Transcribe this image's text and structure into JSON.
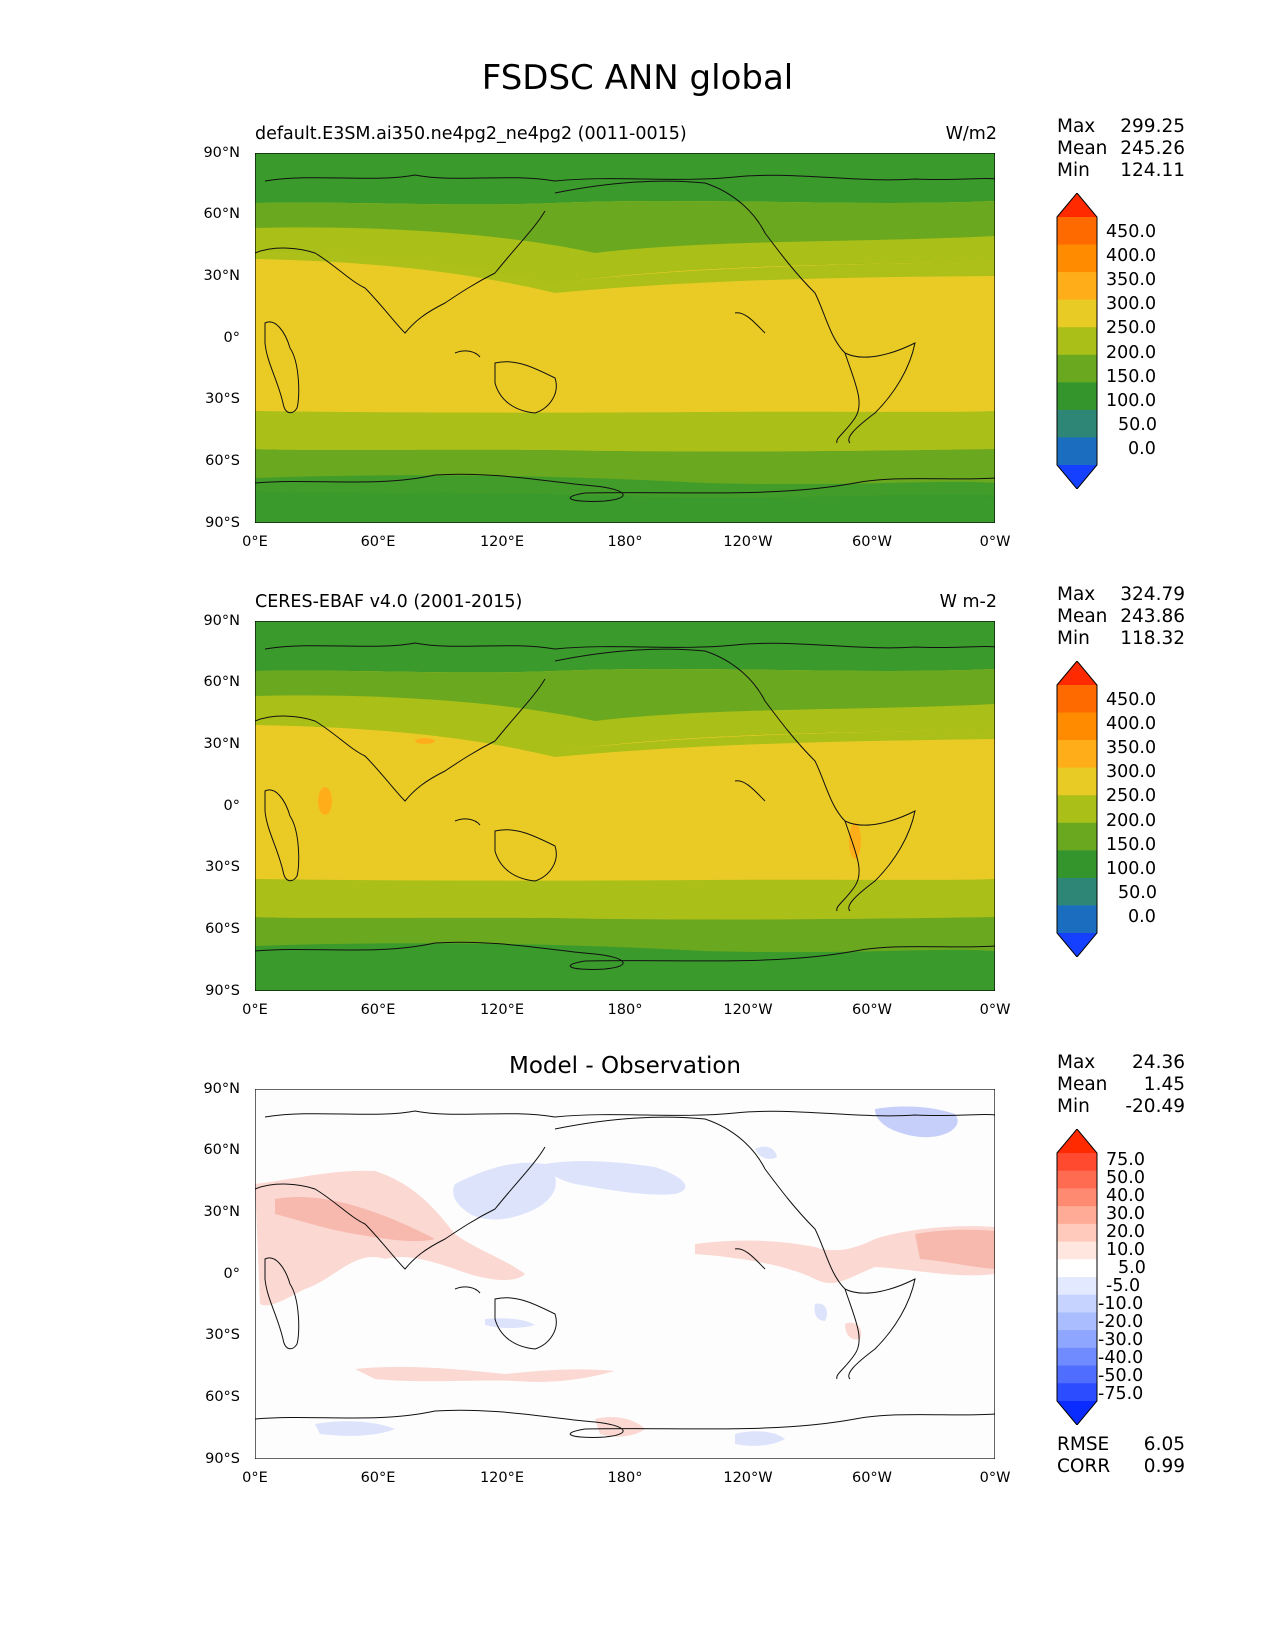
{
  "title": "FSDSC ANN global",
  "axes": {
    "y_ticks": [
      "90°N",
      "60°N",
      "30°N",
      "0°",
      "30°S",
      "60°S",
      "90°S"
    ],
    "x_ticks": [
      "0°E",
      "60°E",
      "120°E",
      "180°",
      "120°W",
      "60°W",
      "0°W"
    ]
  },
  "panels": [
    {
      "title": "default.E3SM.ai350.ne4pg2_ne4pg2 (0011-0015)",
      "units": "W/m2",
      "stats": [
        {
          "label": "Max",
          "value": "299.25"
        },
        {
          "label": "Mean",
          "value": "245.26"
        },
        {
          "label": "Min",
          "value": "124.11"
        }
      ],
      "colorbar": {
        "labels": [
          "450.0",
          "400.0",
          "350.0",
          "300.0",
          "250.0",
          "200.0",
          "150.0",
          "100.0",
          "50.0",
          "0.0"
        ],
        "colors": [
          "#ff2a00",
          "#ff6a00",
          "#ff8c00",
          "#ffae1a",
          "#e8cb25",
          "#aabf18",
          "#6aa81f",
          "#34952d",
          "#2e8676",
          "#1a6dbf",
          "#1640ff"
        ]
      }
    },
    {
      "title": "CERES-EBAF v4.0 (2001-2015)",
      "units": "W m-2",
      "stats": [
        {
          "label": "Max",
          "value": "324.79"
        },
        {
          "label": "Mean",
          "value": "243.86"
        },
        {
          "label": "Min",
          "value": "118.32"
        }
      ],
      "colorbar": {
        "labels": [
          "450.0",
          "400.0",
          "350.0",
          "300.0",
          "250.0",
          "200.0",
          "150.0",
          "100.0",
          "50.0",
          "0.0"
        ],
        "colors": [
          "#ff2a00",
          "#ff6a00",
          "#ff8c00",
          "#ffae1a",
          "#e8cb25",
          "#aabf18",
          "#6aa81f",
          "#34952d",
          "#2e8676",
          "#1a6dbf",
          "#1640ff"
        ]
      }
    },
    {
      "title": "Model - Observation",
      "units": "",
      "stats": [
        {
          "label": "Max",
          "value": "24.36"
        },
        {
          "label": "Mean",
          "value": "1.45"
        },
        {
          "label": "Min",
          "value": "-20.49"
        }
      ],
      "colorbar": {
        "labels": [
          "75.0",
          "50.0",
          "40.0",
          "30.0",
          "20.0",
          "10.0",
          "5.0",
          "-5.0",
          "-10.0",
          "-20.0",
          "-30.0",
          "-40.0",
          "-50.0",
          "-75.0"
        ],
        "colors": [
          "#ff2a00",
          "#ff4a30",
          "#ff6b50",
          "#ff8a72",
          "#ffab95",
          "#ffcabb",
          "#ffe6df",
          "#ffffff",
          "#e3e9ff",
          "#c7d3ff",
          "#aabdff",
          "#8ea6ff",
          "#6f8bff",
          "#4f6eff",
          "#2b4dff",
          "#0a2cff"
        ]
      },
      "metrics": [
        {
          "label": "RMSE",
          "value": "6.05"
        },
        {
          "label": "CORR",
          "value": "0.99"
        }
      ]
    }
  ],
  "field_colors": {
    "band_90_70": "#3a9a2c",
    "band_70_50": "#6aa81f",
    "band_50_35": "#aabf18",
    "band_tropics": "#eacb26",
    "diff_background": "#fdfdfd",
    "diff_positive": "#fbd8d2",
    "diff_positive_strong": "#f7b8ad",
    "diff_negative": "#dde3fb",
    "diff_negative_strong": "#c5cffa"
  }
}
